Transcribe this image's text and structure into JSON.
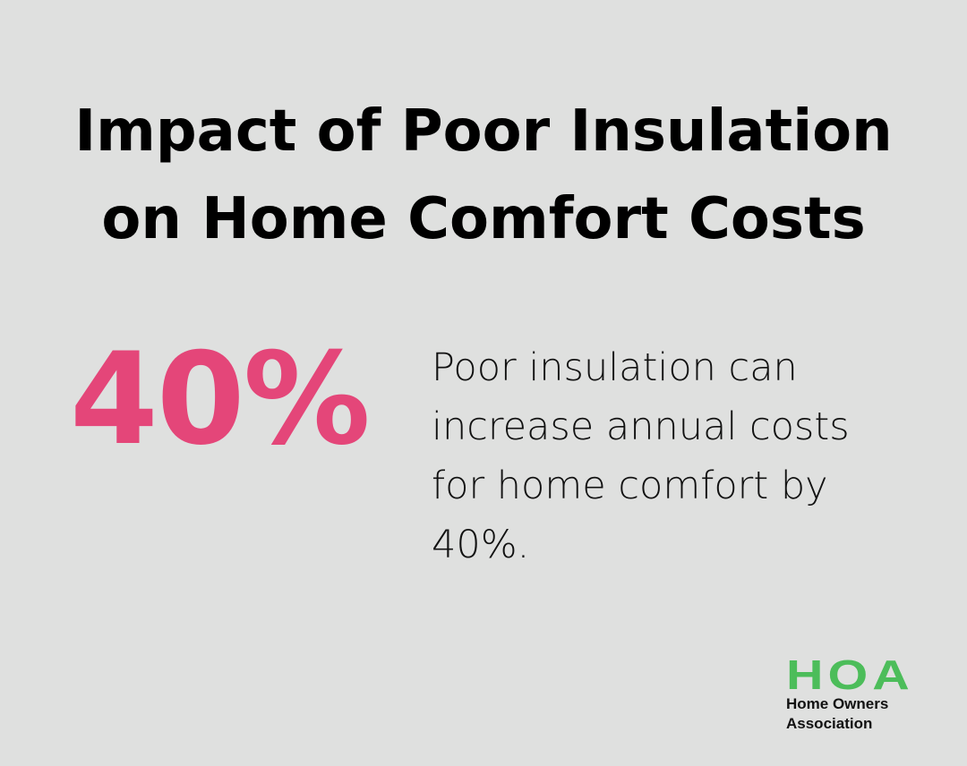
{
  "title": {
    "line1": "Impact of Poor Insulation",
    "line2": "on Home Comfort Costs"
  },
  "stat": {
    "value": "40%",
    "color": "#e44679"
  },
  "description": {
    "lines": [
      "Poor insulation can",
      "increase annual costs",
      "for home comfort by",
      "40%."
    ]
  },
  "logo": {
    "mark": "HOA",
    "line1": "Home Owners",
    "line2": "Association",
    "color": "#4cbd5a"
  }
}
